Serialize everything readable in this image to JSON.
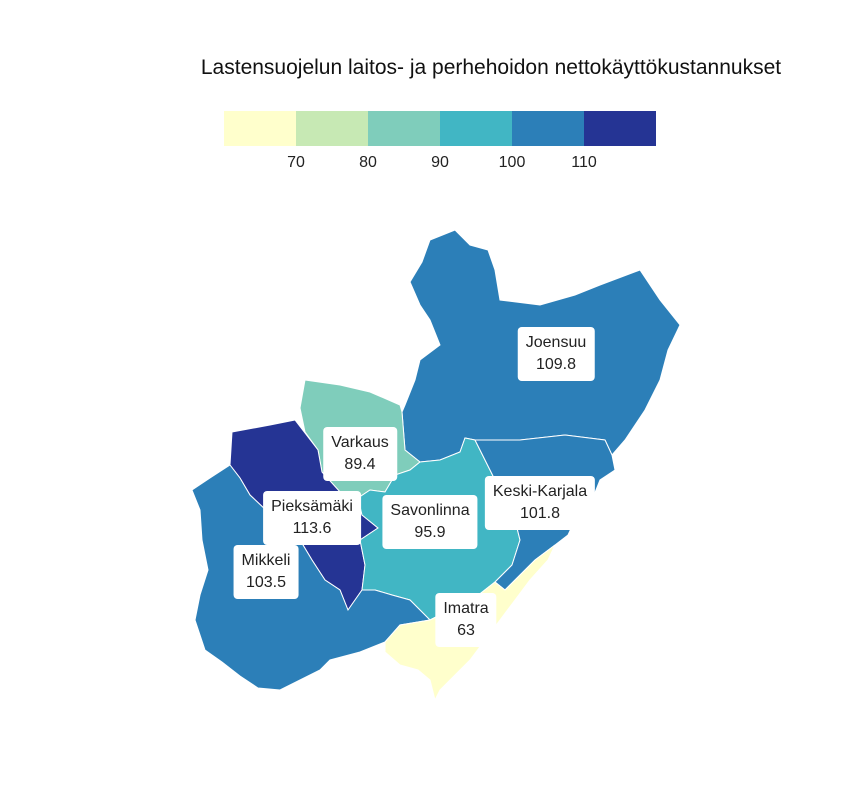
{
  "title": "Lastensuojelun laitos- ja perhehoidon nettokäyttökustannukset",
  "legend": {
    "colors": [
      "#ffffcc",
      "#c7e9b4",
      "#7fcdbb",
      "#41b6c4",
      "#2c7fb8",
      "#253494"
    ],
    "ticks": [
      "70",
      "80",
      "90",
      "100",
      "110"
    ]
  },
  "regions": [
    {
      "name": "Joensuu",
      "value": "109.8",
      "color": "#2c7fb8"
    },
    {
      "name": "Varkaus",
      "value": "89.4",
      "color": "#7fcdbb"
    },
    {
      "name": "Pieksämäki",
      "value": "113.6",
      "color": "#253494"
    },
    {
      "name": "Savonlinna",
      "value": "95.9",
      "color": "#41b6c4"
    },
    {
      "name": "Keski-Karjala",
      "value": "101.8",
      "color": "#2c7fb8"
    },
    {
      "name": "Mikkeli",
      "value": "103.5",
      "color": "#2c7fb8"
    },
    {
      "name": "Imatra",
      "value": "63",
      "color": "#ffffcc"
    }
  ]
}
